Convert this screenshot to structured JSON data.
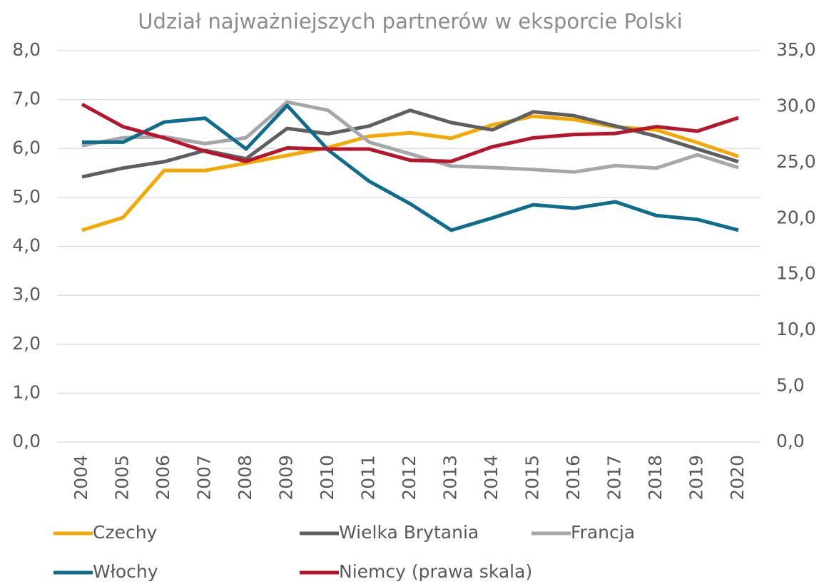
{
  "chart_data": {
    "type": "line",
    "title": "Udział najważniejszych partnerów w eksporcie Polski",
    "categories": [
      "2004",
      "2005",
      "2006",
      "2007",
      "2008",
      "2009",
      "2010",
      "2011",
      "2012",
      "2013",
      "2014",
      "2015",
      "2016",
      "2017",
      "2018",
      "2019",
      "2020"
    ],
    "ylim": [
      0,
      8
    ],
    "yticks": [
      {
        "value": 0,
        "label": "0,0"
      },
      {
        "value": 1,
        "label": "1,0"
      },
      {
        "value": 2,
        "label": "2,0"
      },
      {
        "value": 3,
        "label": "3,0"
      },
      {
        "value": 4,
        "label": "4,0"
      },
      {
        "value": 5,
        "label": "5,0"
      },
      {
        "value": 6,
        "label": "6,0"
      },
      {
        "value": 7,
        "label": "7,0"
      },
      {
        "value": 8,
        "label": "8,0"
      }
    ],
    "y2lim": [
      0,
      35
    ],
    "y2ticks": [
      {
        "value": 0,
        "label": "0,0"
      },
      {
        "value": 5,
        "label": "5,0"
      },
      {
        "value": 10,
        "label": "10,0"
      },
      {
        "value": 15,
        "label": "15,0"
      },
      {
        "value": 20,
        "label": "20,0"
      },
      {
        "value": 25,
        "label": "25,0"
      },
      {
        "value": 30,
        "label": "30,0"
      },
      {
        "value": 35,
        "label": "35,0"
      }
    ],
    "grid": true,
    "legend": "bottom",
    "series": [
      {
        "name": "Czechy",
        "color": "#f5a800",
        "values": [
          4.33,
          4.59,
          5.55,
          5.55,
          5.7,
          5.86,
          6.02,
          6.25,
          6.32,
          6.21,
          6.48,
          6.66,
          6.59,
          6.44,
          6.38,
          6.12,
          5.84
        ]
      },
      {
        "name": "Wielka Brytania",
        "color": "#5d5f63",
        "values": [
          5.42,
          5.6,
          5.73,
          5.96,
          5.79,
          6.41,
          6.3,
          6.46,
          6.78,
          6.53,
          6.38,
          6.75,
          6.67,
          6.46,
          6.25,
          5.99,
          5.73
        ]
      },
      {
        "name": "Francja",
        "color": "#a5a7aa",
        "values": [
          6.06,
          6.22,
          6.24,
          6.1,
          6.22,
          6.95,
          6.78,
          6.13,
          5.89,
          5.64,
          5.61,
          5.57,
          5.52,
          5.65,
          5.6,
          5.87,
          5.61
        ]
      },
      {
        "name": "Włochy",
        "color": "#0e6d8c",
        "values": [
          6.13,
          6.13,
          6.54,
          6.62,
          5.99,
          6.88,
          5.97,
          5.33,
          4.87,
          4.33,
          4.58,
          4.85,
          4.78,
          4.91,
          4.63,
          4.55,
          4.33
        ]
      },
      {
        "name": "Niemcy (prawa skala)",
        "color": "#b5162b",
        "axis": "y2",
        "values": [
          30.2,
          28.2,
          27.2,
          26.0,
          25.1,
          26.3,
          26.2,
          26.2,
          25.2,
          25.1,
          26.4,
          27.2,
          27.5,
          27.6,
          28.2,
          27.8,
          29.0
        ]
      }
    ]
  }
}
